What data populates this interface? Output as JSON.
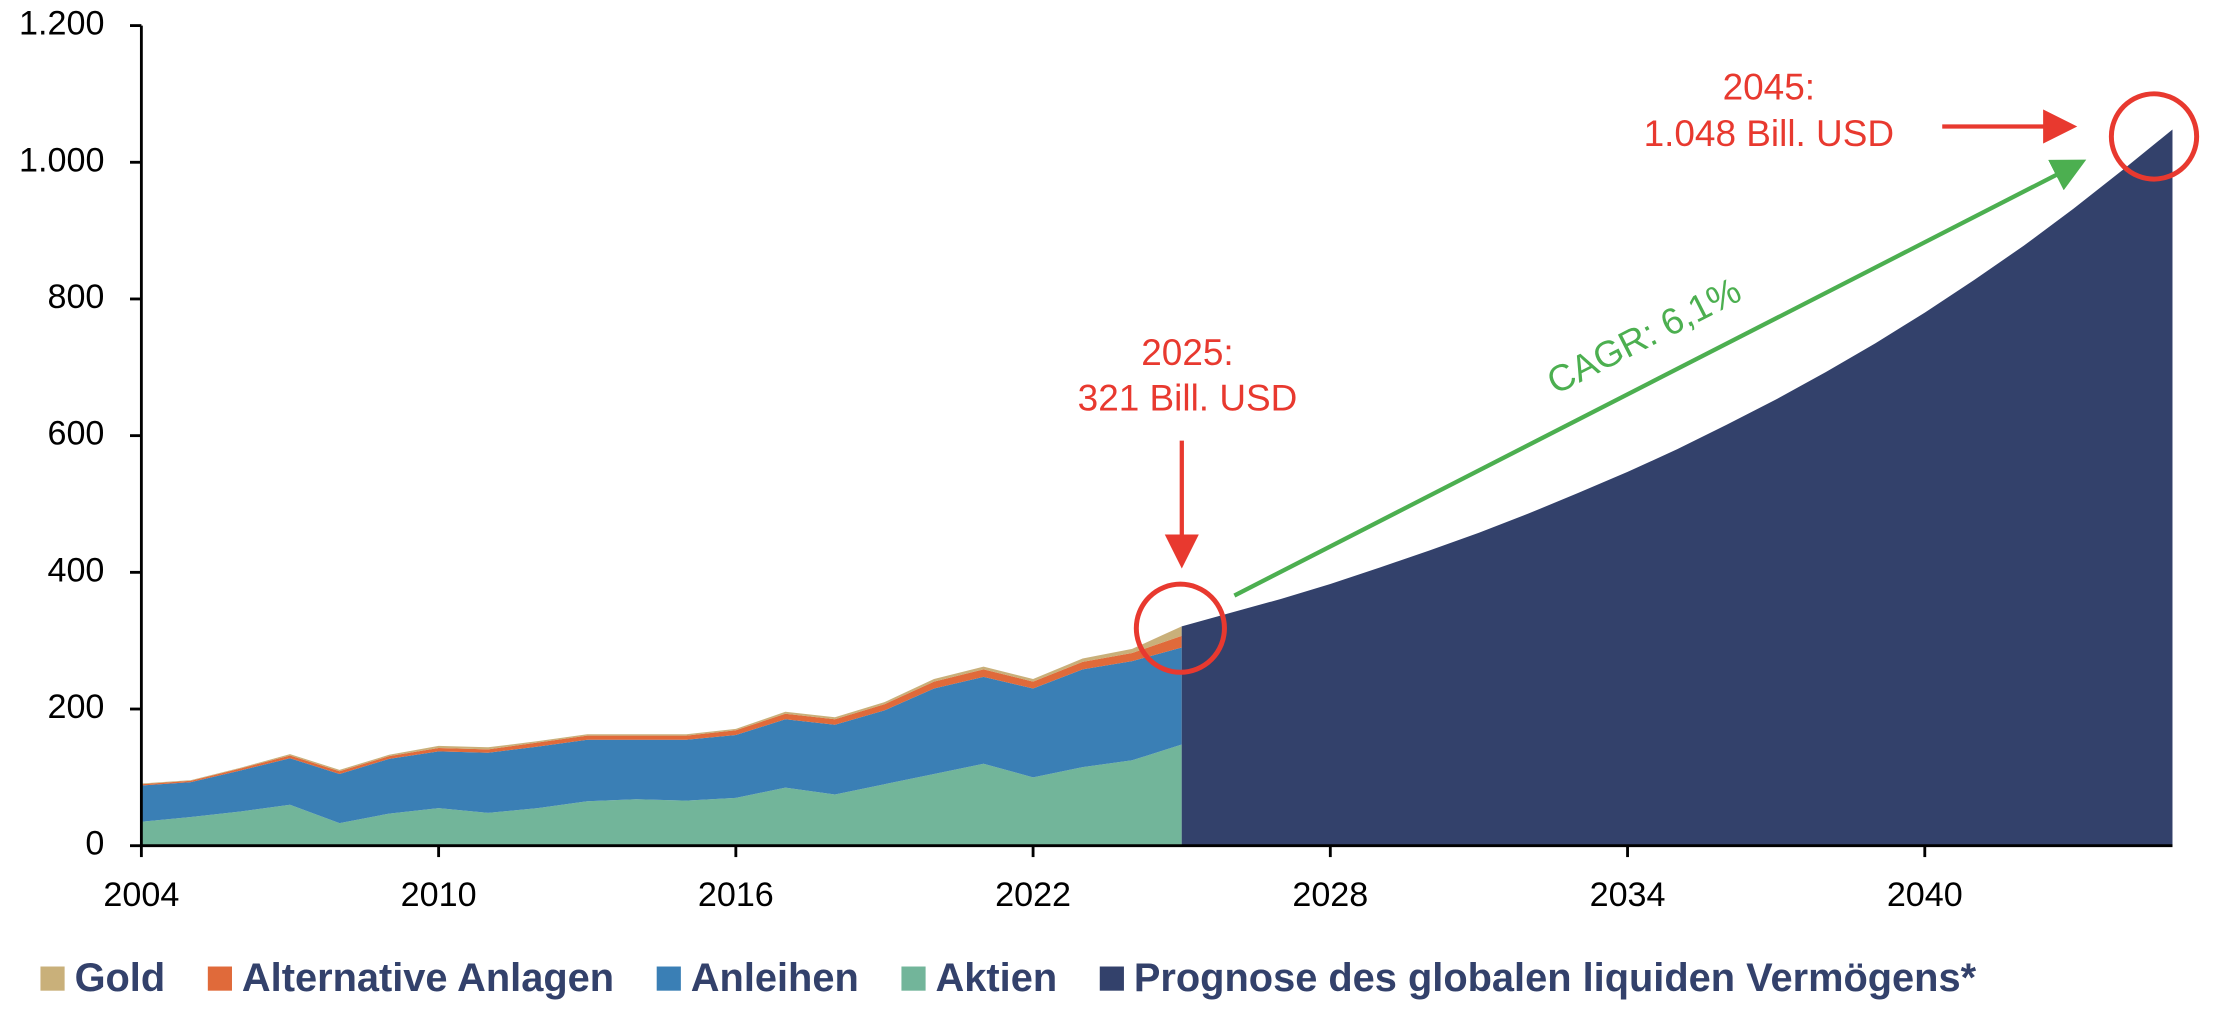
{
  "chart_data": {
    "type": "area",
    "xlim": [
      2004,
      2045
    ],
    "xticks": [
      2004,
      2010,
      2016,
      2022,
      2028,
      2034,
      2040
    ],
    "ylim": [
      0,
      1200
    ],
    "yticks": [
      0,
      200,
      400,
      600,
      800,
      {
        "value": 1000,
        "label": "1.000"
      },
      {
        "value": 1200,
        "label": "1.200"
      }
    ],
    "x": [
      2004,
      2005,
      2006,
      2007,
      2008,
      2009,
      2010,
      2011,
      2012,
      2013,
      2014,
      2015,
      2016,
      2017,
      2018,
      2019,
      2020,
      2021,
      2022,
      2023,
      2024,
      2025
    ],
    "series": [
      {
        "name": "Gold",
        "color": "#c9b07a",
        "stacked": true,
        "values": [
          1,
          1,
          1,
          2,
          2,
          2,
          3,
          3,
          2,
          2,
          2,
          2,
          2,
          3,
          3,
          3,
          4,
          4,
          4,
          5,
          6,
          14
        ]
      },
      {
        "name": "Alternative Anlagen",
        "color": "#e06a3a",
        "stacked": true,
        "values": [
          2,
          2,
          3,
          4,
          4,
          4,
          5,
          5,
          6,
          6,
          6,
          6,
          7,
          8,
          8,
          9,
          10,
          11,
          10,
          11,
          12,
          17
        ]
      },
      {
        "name": "Anleihen",
        "color": "#3a7fb5",
        "stacked": true,
        "values": [
          53,
          51,
          60,
          68,
          72,
          80,
          83,
          88,
          90,
          90,
          87,
          89,
          92,
          100,
          102,
          108,
          125,
          127,
          130,
          143,
          145,
          142
        ]
      },
      {
        "name": "Aktien",
        "color": "#72b59a",
        "stacked": true,
        "values": [
          35,
          42,
          50,
          60,
          33,
          47,
          55,
          48,
          55,
          65,
          68,
          66,
          70,
          85,
          75,
          90,
          105,
          120,
          100,
          115,
          125,
          148
        ]
      },
      {
        "name": "Prognose des globalen liquiden Vermögens*",
        "color": "#33416b",
        "stacked": false,
        "x": [
          2025,
          2026,
          2027,
          2028,
          2029,
          2030,
          2031,
          2032,
          2033,
          2034,
          2035,
          2036,
          2037,
          2038,
          2039,
          2040,
          2041,
          2042,
          2043,
          2044,
          2045
        ],
        "values": [
          321,
          341,
          361,
          383,
          407,
          432,
          458,
          486,
          516,
          547,
          580,
          616,
          653,
          693,
          735,
          780,
          828,
          878,
          932,
          989,
          1048
        ]
      }
    ],
    "annotations": [
      "2025:",
      "321 Bill. USD",
      "2045:",
      "1.048 Bill. USD",
      "CAGR: 6,1%"
    ]
  }
}
